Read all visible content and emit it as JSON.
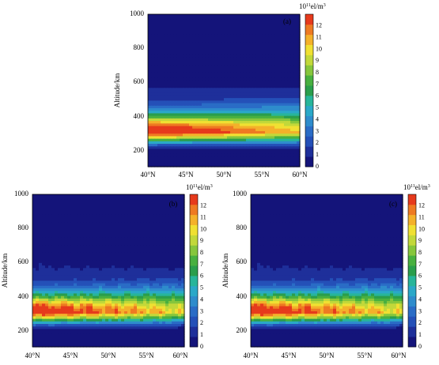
{
  "chart_data": [
    {
      "type": "heatmap",
      "panel_label": "(a)",
      "xlabel": "",
      "ylabel": "Altitude/km",
      "x_ticks": [
        "40°N",
        "45°N",
        "50°N",
        "55°N",
        "60°N"
      ],
      "y_ticks": [
        "200",
        "400",
        "600",
        "800",
        "1000"
      ],
      "xlim": [
        40,
        60
      ],
      "ylim": [
        100,
        1000
      ],
      "colorbar": {
        "unit_base": "10",
        "unit_exp": "11",
        "unit_rest": "el/m",
        "unit_sup": "3",
        "ticks": [
          "0",
          "1",
          "2",
          "3",
          "4",
          "5",
          "6",
          "7",
          "8",
          "9",
          "10",
          "11",
          "12"
        ],
        "range": [
          0,
          13
        ]
      },
      "model": {
        "peak_density_at_40N": 12.6,
        "peak_density_at_60N": 9.2,
        "peak_altitude_km": 300,
        "wavy": false
      }
    },
    {
      "type": "heatmap",
      "panel_label": "(b)",
      "xlabel": "",
      "ylabel": "Altitude/km",
      "x_ticks": [
        "40°N",
        "45°N",
        "50°N",
        "55°N",
        "60°N"
      ],
      "y_ticks": [
        "200",
        "400",
        "600",
        "800",
        "1000"
      ],
      "xlim": [
        40,
        60
      ],
      "ylim": [
        100,
        1000
      ],
      "colorbar": {
        "unit_base": "10",
        "unit_exp": "11",
        "unit_rest": "el/m",
        "unit_sup": "3",
        "ticks": [
          "0",
          "1",
          "2",
          "3",
          "4",
          "5",
          "6",
          "7",
          "8",
          "9",
          "10",
          "11",
          "12"
        ],
        "range": [
          0,
          13
        ]
      },
      "model": {
        "peak_density_at_40N": 12.5,
        "peak_density_at_60N": 8.6,
        "peak_altitude_km": 300,
        "wavy": true
      }
    },
    {
      "type": "heatmap",
      "panel_label": "(c)",
      "xlabel": "",
      "ylabel": "Altitude/km",
      "x_ticks": [
        "40°N",
        "45°N",
        "50°N",
        "55°N",
        "60°N"
      ],
      "y_ticks": [
        "200",
        "400",
        "600",
        "800",
        "1000"
      ],
      "xlim": [
        40,
        60
      ],
      "ylim": [
        100,
        1000
      ],
      "colorbar": {
        "unit_base": "10",
        "unit_exp": "11",
        "unit_rest": "el/m",
        "unit_sup": "3",
        "ticks": [
          "0",
          "1",
          "2",
          "3",
          "4",
          "5",
          "6",
          "7",
          "8",
          "9",
          "10",
          "11",
          "12"
        ],
        "range": [
          0,
          13
        ]
      },
      "model": {
        "peak_density_at_40N": 12.5,
        "peak_density_at_60N": 8.6,
        "peak_altitude_km": 300,
        "wavy": true
      }
    }
  ],
  "colormap": [
    "#14147a",
    "#1e2f9a",
    "#2450b8",
    "#2a6cc6",
    "#2e8ccc",
    "#2aa8c8",
    "#27b59a",
    "#2a9e4c",
    "#48b040",
    "#86c63c",
    "#c2d83a",
    "#f0e032",
    "#f4b12a",
    "#ee7a22",
    "#e63a1c"
  ]
}
